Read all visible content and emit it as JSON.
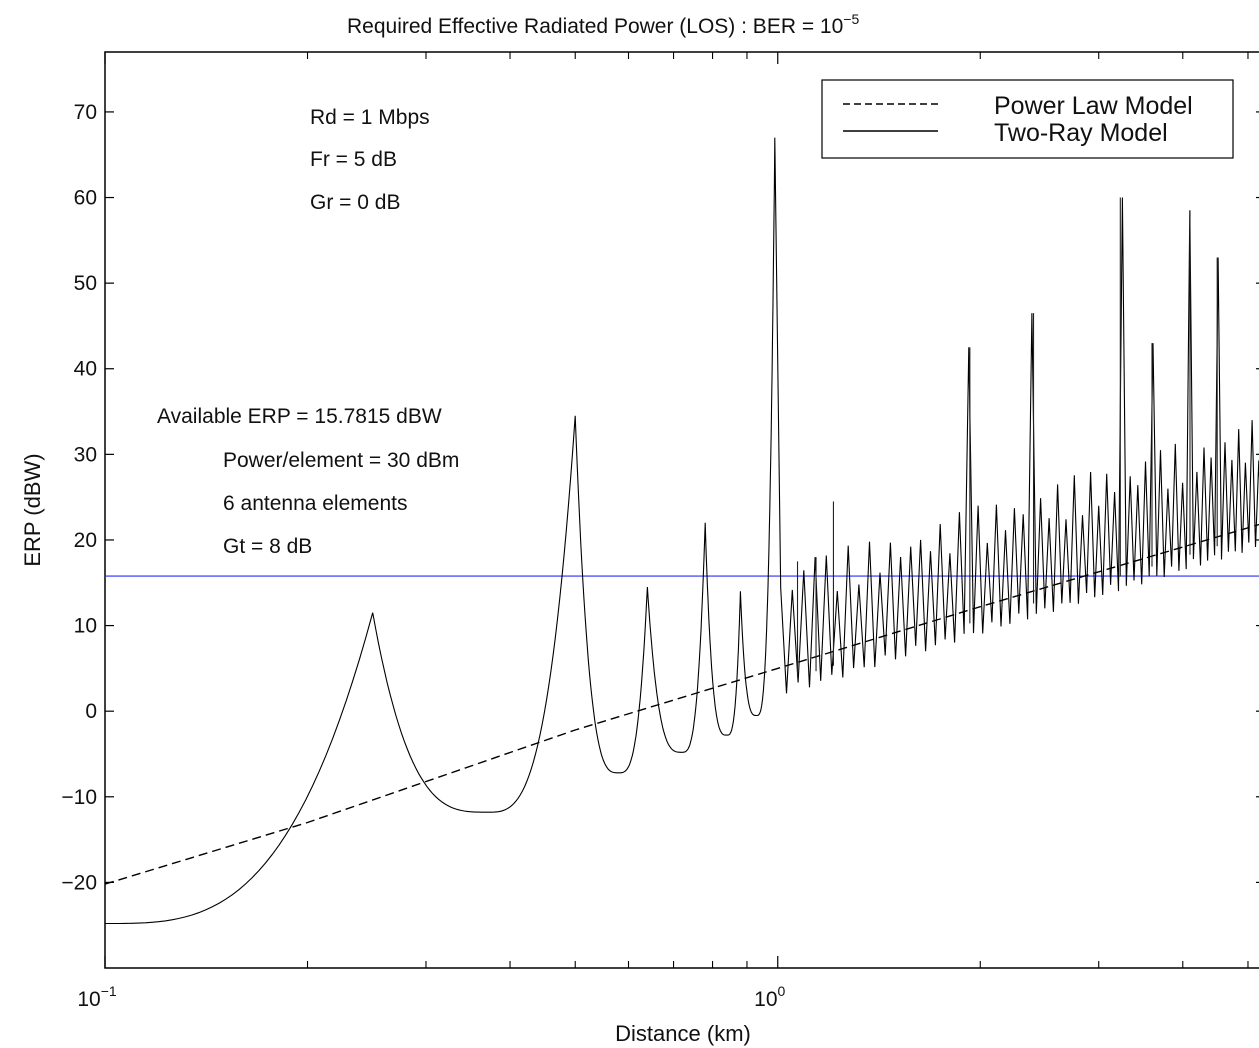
{
  "chart_data": {
    "type": "line",
    "title_main": "Required Effective Radiated Power (LOS) : BER = 10",
    "title_exp": "−5",
    "xlabel": "Distance (km)",
    "ylabel": "ERP (dBW)",
    "xscale": "log",
    "xlim": [
      0.1,
      5.3
    ],
    "ylim": [
      -30,
      77
    ],
    "x_ticks": [
      {
        "base": "10",
        "exp": "−1",
        "value": 0.1
      },
      {
        "base": "10",
        "exp": "0",
        "value": 1
      }
    ],
    "y_ticks": [
      {
        "label": "70",
        "value": 70
      },
      {
        "label": "60",
        "value": 60
      },
      {
        "label": "50",
        "value": 50
      },
      {
        "label": "40",
        "value": 40
      },
      {
        "label": "30",
        "value": 30
      },
      {
        "label": "20",
        "value": 20
      },
      {
        "label": "10",
        "value": 10
      },
      {
        "label": "0",
        "value": 0
      },
      {
        "label": "−10",
        "value": -10
      },
      {
        "label": "−20",
        "value": -20
      }
    ],
    "grid": false,
    "legend_position": "top-right",
    "series": [
      {
        "name": "Power Law Model",
        "style": "dashed",
        "color": "#000000",
        "x": [
          0.1,
          0.2,
          0.5,
          1.0,
          2.0,
          5.3
        ],
        "y": [
          -20.2,
          -13.0,
          -2.2,
          5.0,
          12.2,
          22.0
        ]
      },
      {
        "name": "Two-Ray Model",
        "style": "solid",
        "color": "#000000",
        "peaks": [
          {
            "x": 0.25,
            "y": 11.5
          },
          {
            "x": 0.5,
            "y": 34.5
          },
          {
            "x": 0.64,
            "y": 14.5
          },
          {
            "x": 0.78,
            "y": 22.0
          },
          {
            "x": 0.88,
            "y": 14.0
          },
          {
            "x": 0.99,
            "y": 67.0
          },
          {
            "x": 1.07,
            "y": 17.5
          },
          {
            "x": 1.14,
            "y": 18.0
          },
          {
            "x": 1.21,
            "y": 24.5
          },
          {
            "x": 1.93,
            "y": 42.5
          },
          {
            "x": 2.4,
            "y": 46.5
          },
          {
            "x": 3.23,
            "y": 60.0
          },
          {
            "x": 3.6,
            "y": 43.0
          },
          {
            "x": 4.1,
            "y": 58.5
          },
          {
            "x": 4.5,
            "y": 53.0
          }
        ],
        "troughs": [
          {
            "x": 0.1,
            "y": -24.8
          },
          {
            "x": 0.37,
            "y": -11.8
          },
          {
            "x": 0.58,
            "y": -7.2
          },
          {
            "x": 0.72,
            "y": -4.8
          },
          {
            "x": 0.84,
            "y": -2.8
          },
          {
            "x": 0.93,
            "y": -0.5
          }
        ]
      }
    ],
    "reference_line": {
      "y": 15.7815,
      "color": "#2a2aff"
    },
    "annotations_top": [
      "Rd = 1 Mbps",
      "Fr = 5 dB",
      "Gr = 0 dB"
    ],
    "annotations_mid": [
      "Available ERP = 15.7815 dBW",
      "Power/element = 30 dBm",
      "6 antenna elements",
      "Gt = 8 dB"
    ]
  }
}
